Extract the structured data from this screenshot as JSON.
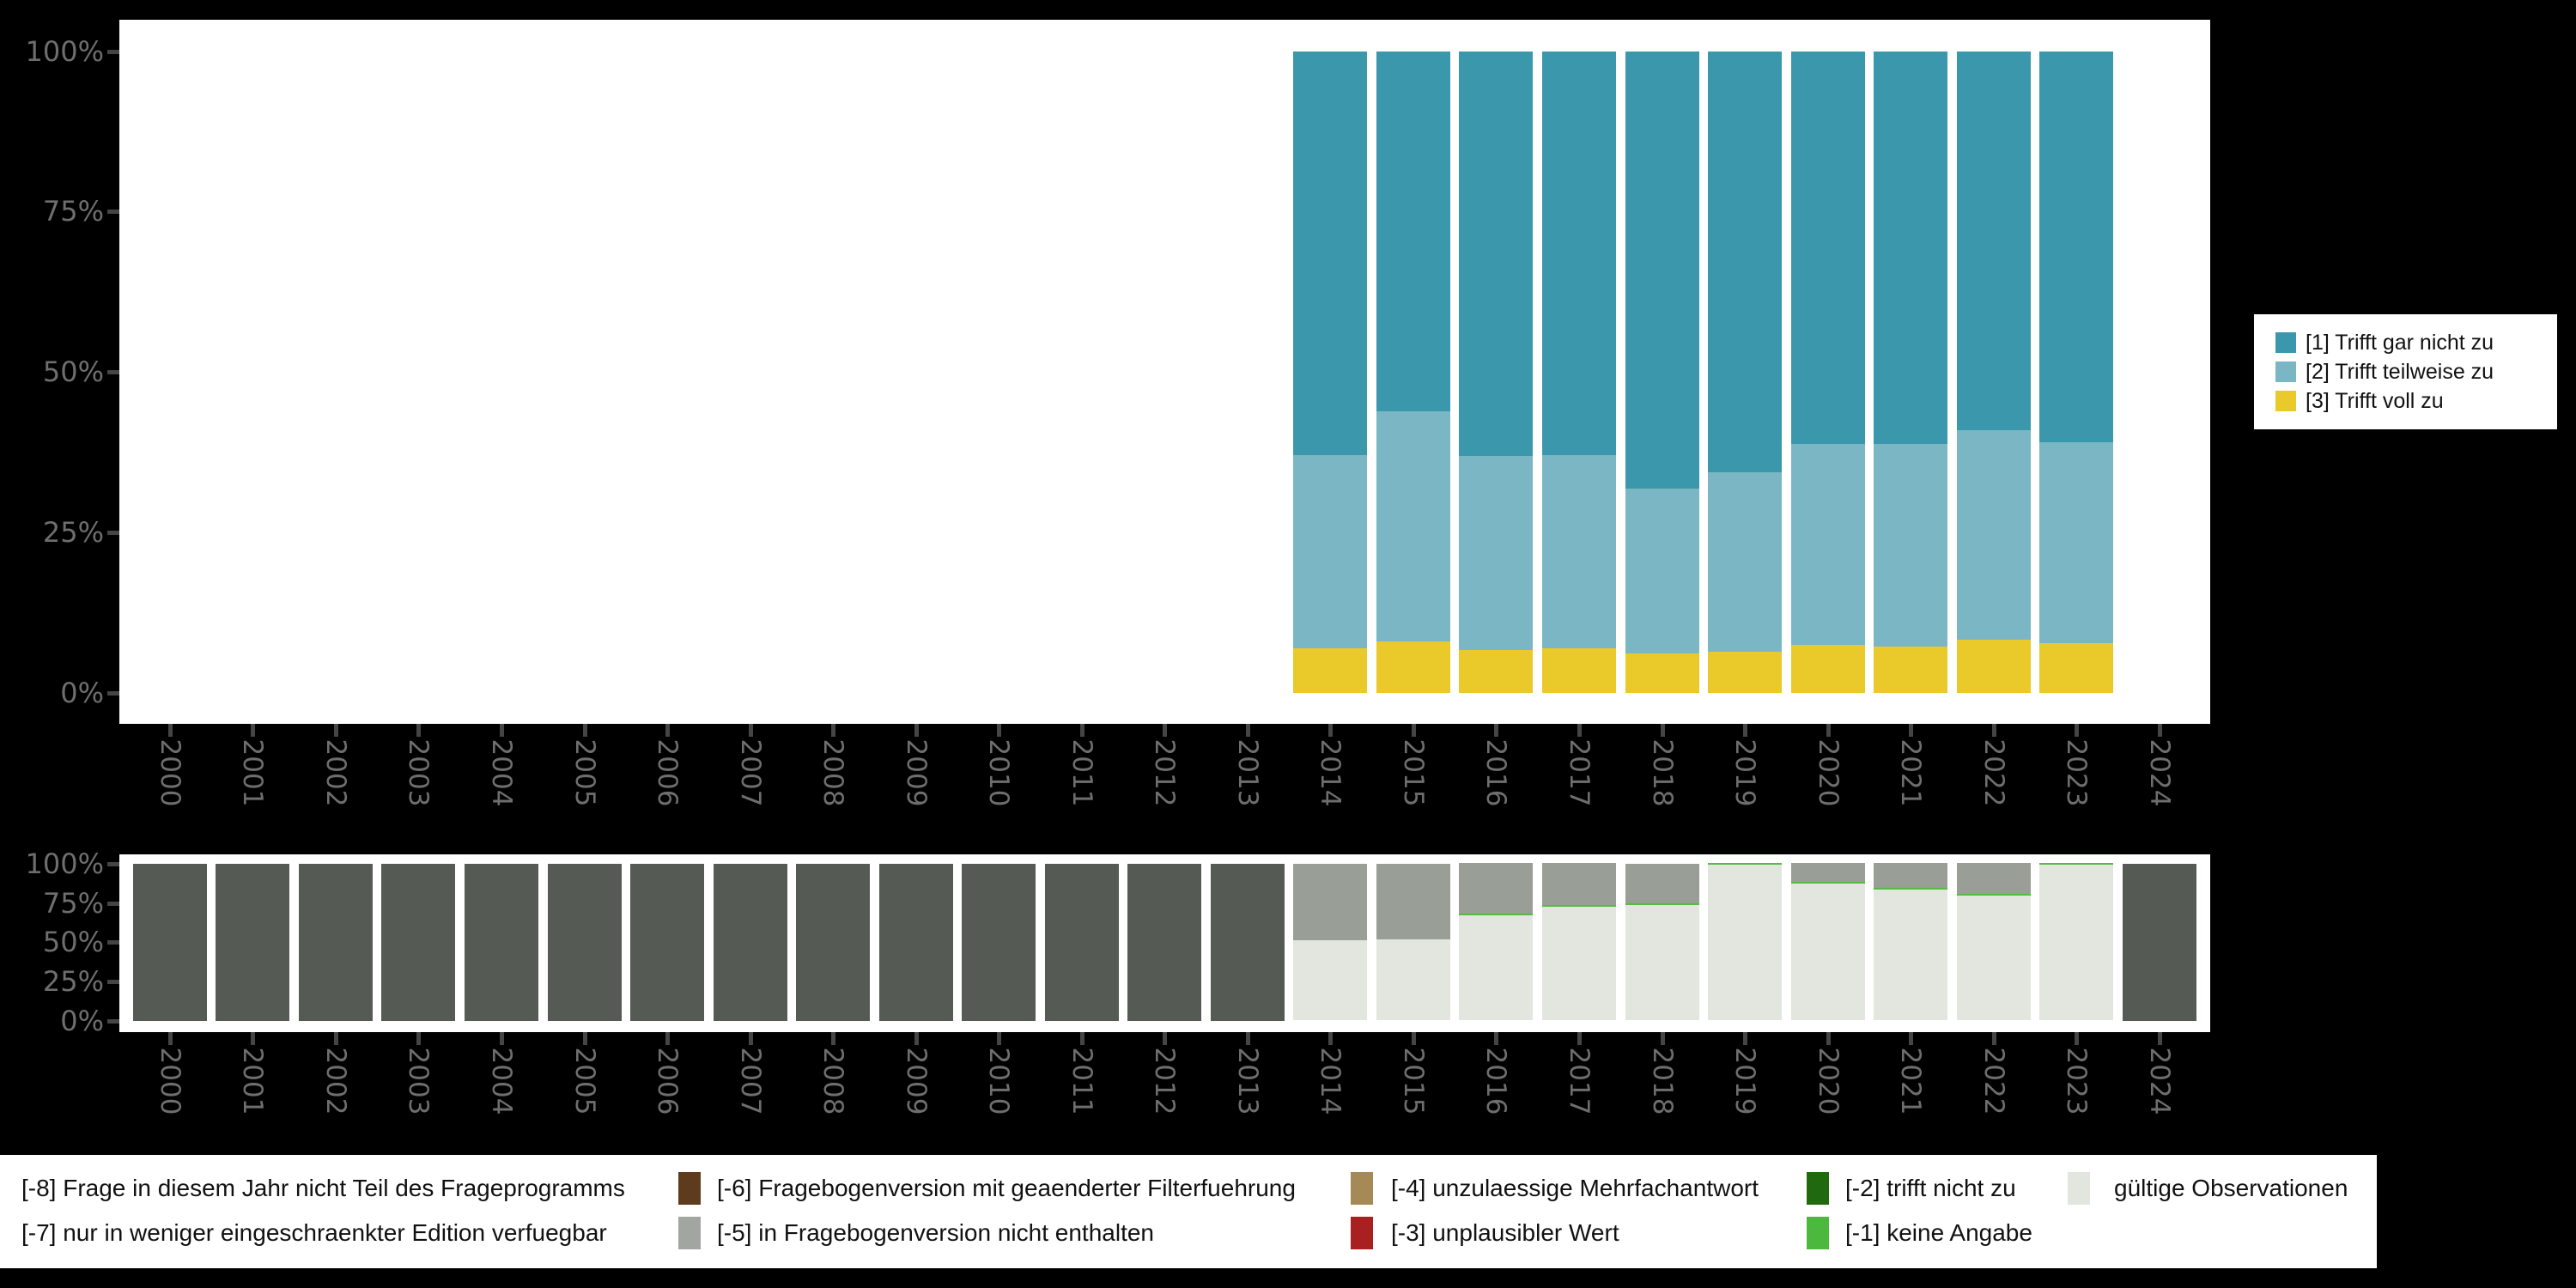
{
  "colors": {
    "background": "#000000",
    "panel": "#ffffff",
    "axis_text": "#6e6e6e",
    "tick_mark": "#454545",
    "teal": "#3b98ac",
    "light_blue": "#7ab6c4",
    "yellow": "#eaca2b",
    "dark_gray_bar": "#555b54",
    "medium_gray_bar": "#999e96",
    "valid_light": "#e2e6df",
    "bright_green": "#55bd41",
    "legend_brown": "#5e3b1d",
    "legend_gray": "#a1a6a1",
    "legend_tan": "#a58a58",
    "legend_red": "#a82020",
    "legend_dark_green": "#21690f"
  },
  "chart_data": [
    {
      "type": "bar",
      "stacked": true,
      "title": "",
      "xlabel": "",
      "ylabel": "",
      "unit": "percent",
      "ylim": [
        0,
        100
      ],
      "ytick_labels": [
        "0%",
        "25%",
        "50%",
        "75%",
        "100%"
      ],
      "ytick_values": [
        0,
        25,
        50,
        75,
        100
      ],
      "grid": false,
      "legend_position": "right",
      "categories": [
        "2000",
        "2001",
        "2002",
        "2003",
        "2004",
        "2005",
        "2006",
        "2007",
        "2008",
        "2009",
        "2010",
        "2011",
        "2012",
        "2013",
        "2014",
        "2015",
        "2016",
        "2017",
        "2018",
        "2019",
        "2020",
        "2021",
        "2022",
        "2023",
        "2024"
      ],
      "series": [
        {
          "name": "[3] Trifft voll zu",
          "color": "#eaca2b",
          "values": [
            null,
            null,
            null,
            null,
            null,
            null,
            null,
            null,
            null,
            null,
            null,
            null,
            null,
            null,
            6.9,
            8.0,
            6.7,
            7.0,
            6.2,
            6.4,
            7.5,
            7.2,
            8.3,
            7.8,
            null
          ]
        },
        {
          "name": "[2] Trifft teilweise zu",
          "color": "#7ab6c4",
          "values": [
            null,
            null,
            null,
            null,
            null,
            null,
            null,
            null,
            null,
            null,
            null,
            null,
            null,
            null,
            30.1,
            35.9,
            30.2,
            30.1,
            25.6,
            28.0,
            31.3,
            31.6,
            32.7,
            31.3,
            null
          ]
        },
        {
          "name": "[1] Trifft gar nicht zu",
          "color": "#3b98ac",
          "values": [
            null,
            null,
            null,
            null,
            null,
            null,
            null,
            null,
            null,
            null,
            null,
            null,
            null,
            null,
            63.0,
            56.1,
            63.1,
            62.9,
            68.2,
            65.6,
            61.2,
            61.2,
            59.0,
            60.9,
            null
          ]
        }
      ],
      "legend_items": [
        {
          "label": "[1] Trifft gar nicht zu",
          "color": "#3b98ac"
        },
        {
          "label": "[2] Trifft teilweise zu",
          "color": "#7ab6c4"
        },
        {
          "label": "[3] Trifft voll zu",
          "color": "#eaca2b"
        }
      ]
    },
    {
      "type": "bar",
      "stacked": true,
      "title": "",
      "xlabel": "",
      "ylabel": "",
      "unit": "percent",
      "ylim": [
        0,
        100
      ],
      "ytick_labels": [
        "0%",
        "25%",
        "50%",
        "75%",
        "100%"
      ],
      "ytick_values": [
        0,
        25,
        50,
        75,
        100
      ],
      "grid": false,
      "legend_position": "bottom",
      "categories": [
        "2000",
        "2001",
        "2002",
        "2003",
        "2004",
        "2005",
        "2006",
        "2007",
        "2008",
        "2009",
        "2010",
        "2011",
        "2012",
        "2013",
        "2014",
        "2015",
        "2016",
        "2017",
        "2018",
        "2019",
        "2020",
        "2021",
        "2022",
        "2023",
        "2024"
      ],
      "series": [
        {
          "name": "gültige Observationen",
          "color": "#e2e6df",
          "values": [
            0,
            0,
            0,
            0,
            0,
            0,
            0,
            0,
            0,
            0,
            0,
            0,
            0,
            0,
            51.0,
            52.0,
            67.3,
            72.7,
            73.8,
            99.3,
            87.3,
            83.3,
            79.8,
            99.4,
            0
          ]
        },
        {
          "name": "[-1] keine Angabe",
          "color": "#55bd41",
          "values": [
            0,
            0,
            0,
            0,
            0,
            0,
            0,
            0,
            0,
            0,
            0,
            0,
            0,
            0,
            0,
            0,
            0.5,
            0.6,
            1.2,
            0.7,
            0.7,
            0.8,
            0.4,
            0.6,
            0
          ]
        },
        {
          "name": "[-5] in Fragebogenversion nicht enthalten",
          "color": "#999e96",
          "values": [
            0,
            0,
            0,
            0,
            0,
            0,
            0,
            0,
            0,
            0,
            0,
            0,
            0,
            0,
            49.0,
            48.0,
            32.2,
            26.7,
            25.0,
            0,
            12.0,
            15.9,
            19.8,
            0,
            0
          ]
        },
        {
          "name": "[-8] Frage in diesem Jahr nicht Teil des Frageprogramms",
          "color": "#555b54",
          "values": [
            100,
            100,
            100,
            100,
            100,
            100,
            100,
            100,
            100,
            100,
            100,
            100,
            100,
            100,
            0,
            0,
            0,
            0,
            0,
            0,
            0,
            0,
            0,
            0,
            100
          ]
        }
      ]
    }
  ],
  "bottom_legend": {
    "rows": [
      [
        {
          "label": "[-8] Frage in diesem Jahr nicht Teil des Frageprogramms",
          "swatch": null
        },
        {
          "label": "[-6] Fragebogenversion mit geaenderter Filterfuehrung",
          "swatch": "#5e3b1d"
        },
        {
          "label": "[-4] unzulaessige Mehrfachantwort",
          "swatch": "#a58a58"
        },
        {
          "label": "[-2] trifft nicht zu",
          "swatch": "#21690f"
        },
        {
          "label": "gültige Observationen",
          "swatch": "#e2e6df"
        }
      ],
      [
        {
          "label": "[-7] nur in weniger eingeschraenkter Edition verfuegbar",
          "swatch": null
        },
        {
          "label": "[-5] in Fragebogenversion nicht enthalten",
          "swatch": "#a1a6a1"
        },
        {
          "label": "[-3] unplausibler Wert",
          "swatch": "#a82020"
        },
        {
          "label": "[-1] keine Angabe",
          "swatch": "#4db83e"
        }
      ]
    ]
  }
}
